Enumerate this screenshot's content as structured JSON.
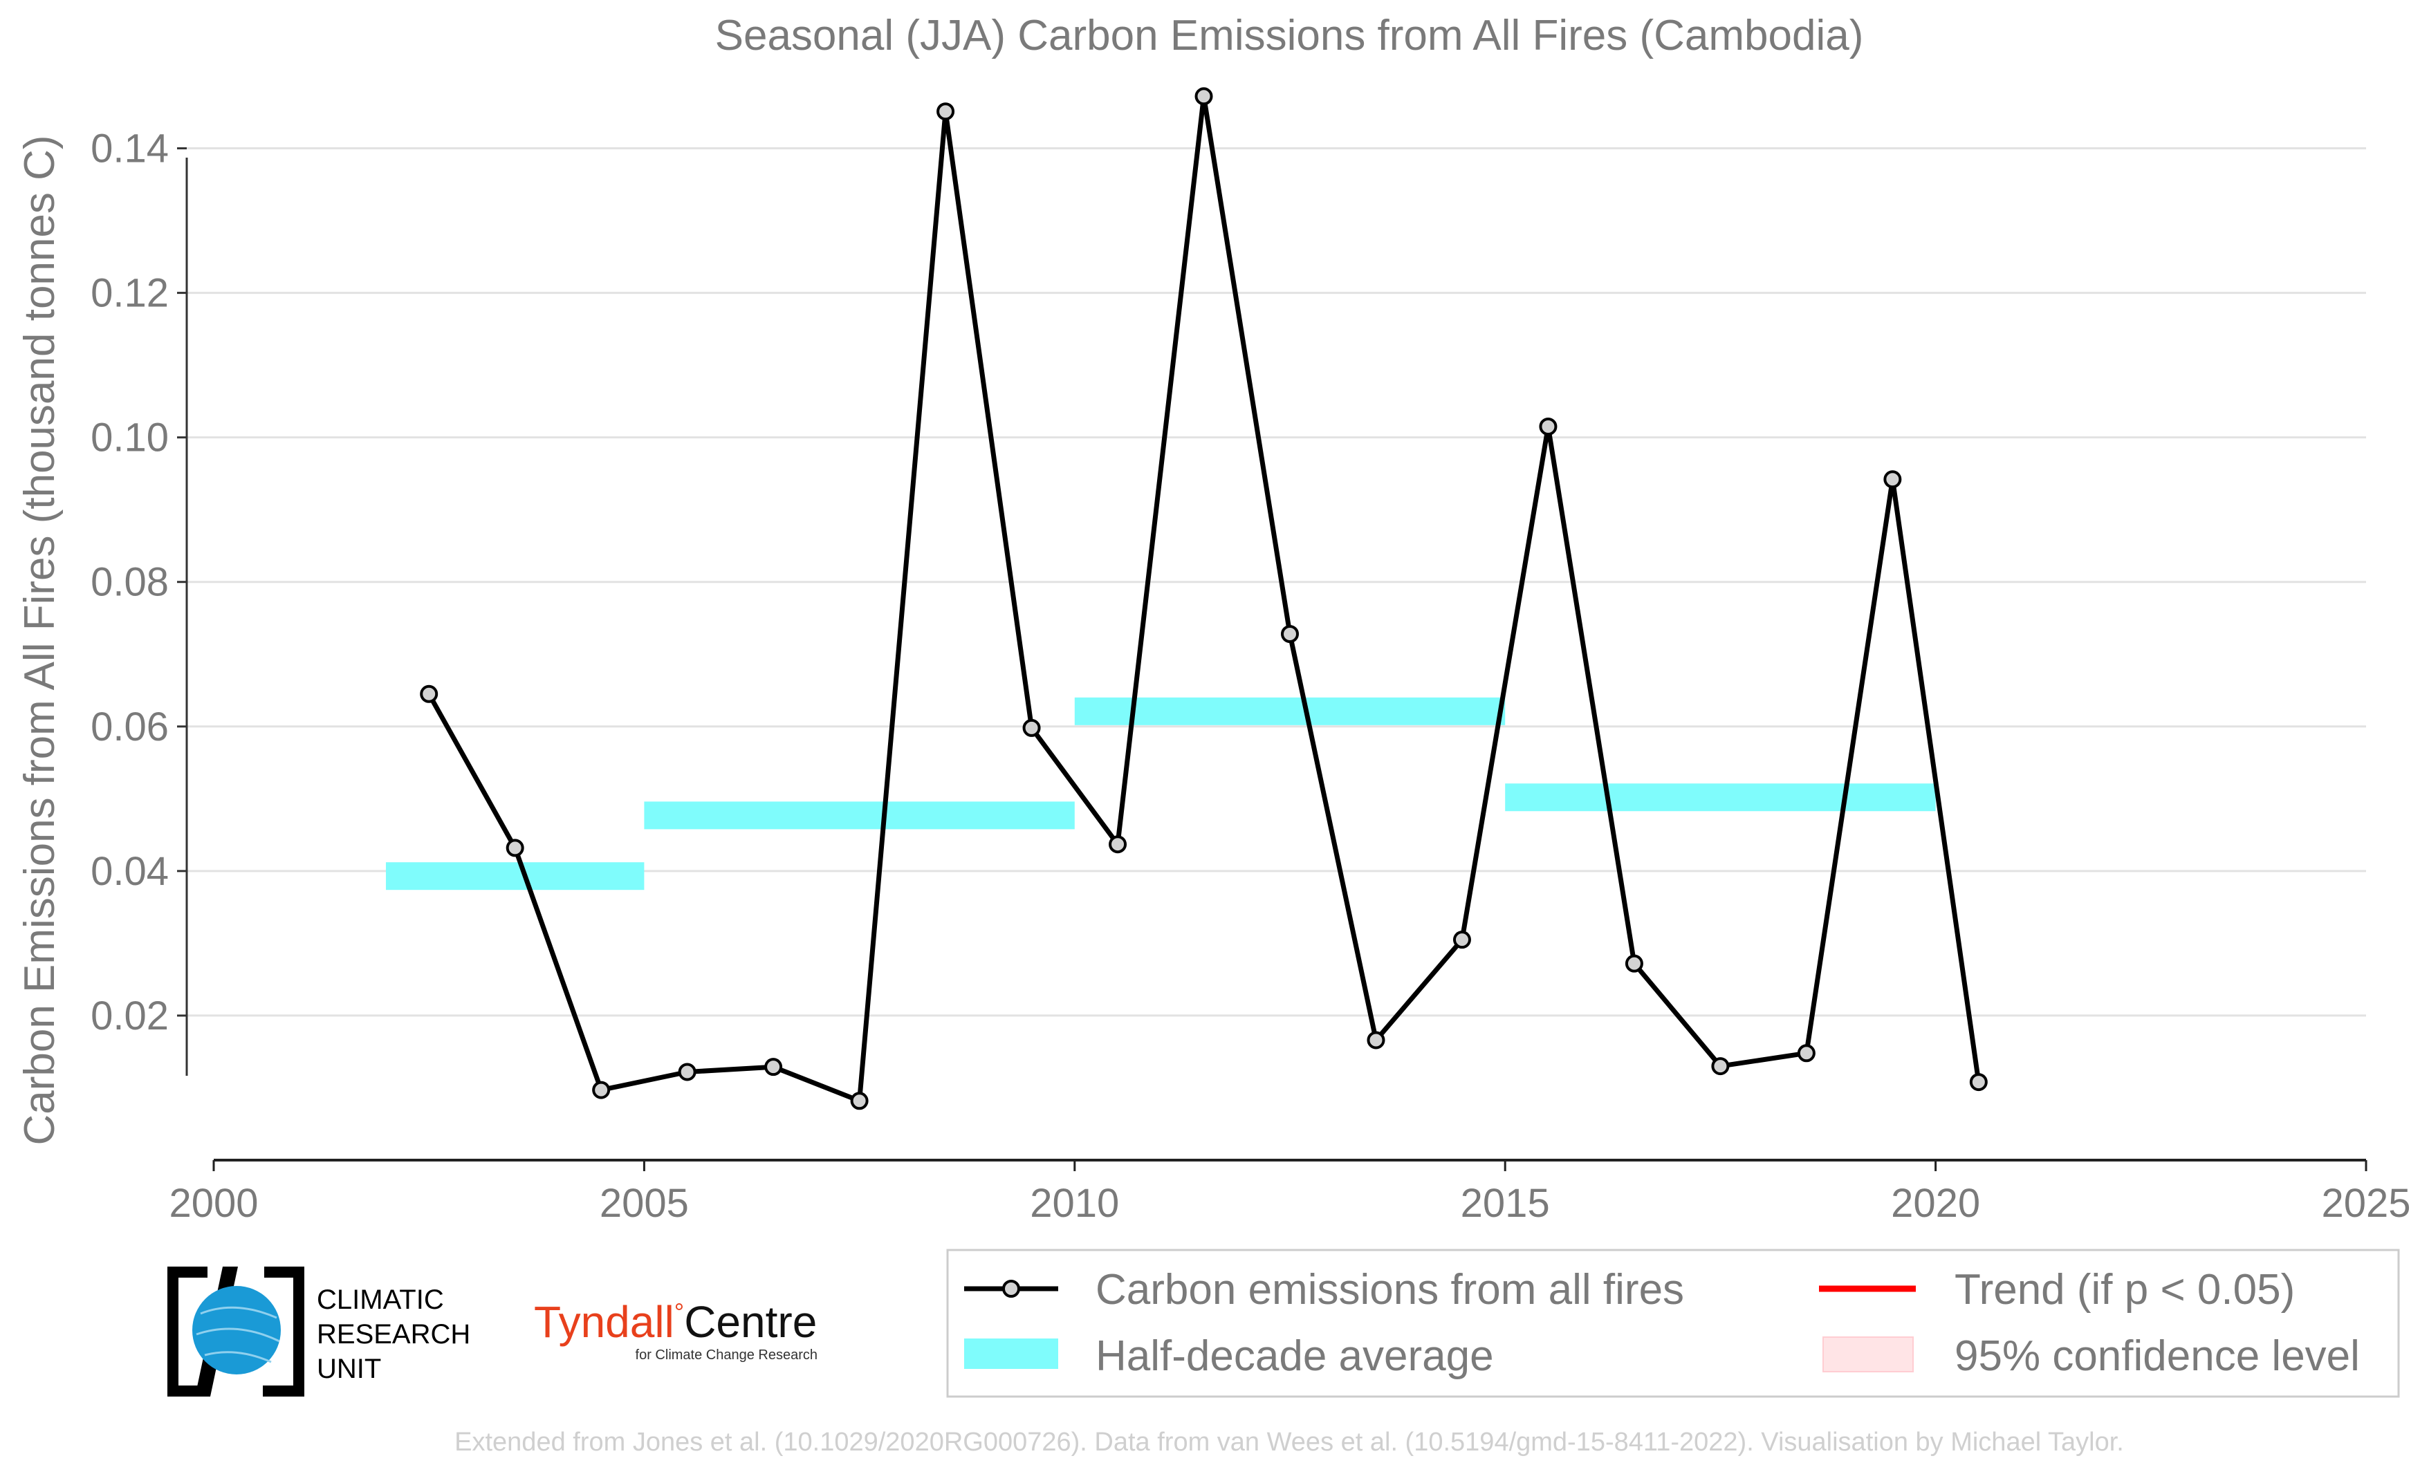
{
  "chart_data": {
    "type": "line",
    "title": "Seasonal (JJA) Carbon Emissions from All Fires (Cambodia)",
    "ylabel": "Carbon Emissions from All Fires (thousand tonnes C)",
    "xlabel": "",
    "xlim": [
      2000,
      2025
    ],
    "ylim": [
      0,
      0.15
    ],
    "xticks": [
      2000,
      2005,
      2010,
      2015,
      2020,
      2025
    ],
    "yticks": [
      0.02,
      0.04,
      0.06,
      0.08,
      0.1,
      0.12,
      0.14
    ],
    "ytick_labels": [
      "0.02",
      "0.04",
      "0.06",
      "0.08",
      "0.10",
      "0.12",
      "0.14"
    ],
    "grid": "horizontal",
    "series": [
      {
        "name": "Carbon emissions from all fires",
        "color": "#000000",
        "x": [
          2002.5,
          2003.5,
          2004.5,
          2005.5,
          2006.5,
          2007.5,
          2008.5,
          2009.5,
          2010.5,
          2011.5,
          2012.5,
          2013.5,
          2014.5,
          2015.5,
          2016.5,
          2017.5,
          2018.5,
          2019.5,
          2020.5
        ],
        "values": [
          0.0645,
          0.0432,
          0.0097,
          0.0122,
          0.0129,
          0.0082,
          0.1451,
          0.0598,
          0.0437,
          0.1472,
          0.0728,
          0.0166,
          0.0305,
          0.1015,
          0.0272,
          0.013,
          0.0148,
          0.0942,
          0.0108
        ]
      }
    ],
    "half_decade_average": {
      "name": "Half-decade average",
      "color": "#7ffcfc",
      "segments": [
        {
          "x_start": 2002,
          "x_end": 2005,
          "value": 0.0393
        },
        {
          "x_start": 2005,
          "x_end": 2010,
          "value": 0.0477
        },
        {
          "x_start": 2010,
          "x_end": 2015,
          "value": 0.0621
        },
        {
          "x_start": 2015,
          "x_end": 2020,
          "value": 0.0502
        }
      ]
    },
    "legend": {
      "placement": "bottom-right",
      "items": [
        {
          "label": "Carbon emissions from all fires",
          "kind": "line-marker",
          "color": "#000000"
        },
        {
          "label": "Trend (if p < 0.05)",
          "kind": "line",
          "color": "#ff0000"
        },
        {
          "label": "Half-decade average",
          "kind": "band",
          "color": "#7ffcfc"
        },
        {
          "label": "95% confidence level",
          "kind": "patch",
          "color": "#ffe4e6"
        }
      ]
    }
  },
  "logos": {
    "cru_lines": [
      "CLIMATIC",
      "RESEARCH",
      "UNIT"
    ],
    "tyndall_main": "Tyndall",
    "tyndall_degree": "°",
    "tyndall_centre": "Centre",
    "tyndall_sub": "for Climate Change Research",
    "tyndall_color": "#e8401c"
  },
  "credit": "Extended from Jones et al. (10.1029/2020RG000726). Data from van Wees et al. (10.5194/gmd-15-8411-2022). Visualisation by Michael Taylor."
}
